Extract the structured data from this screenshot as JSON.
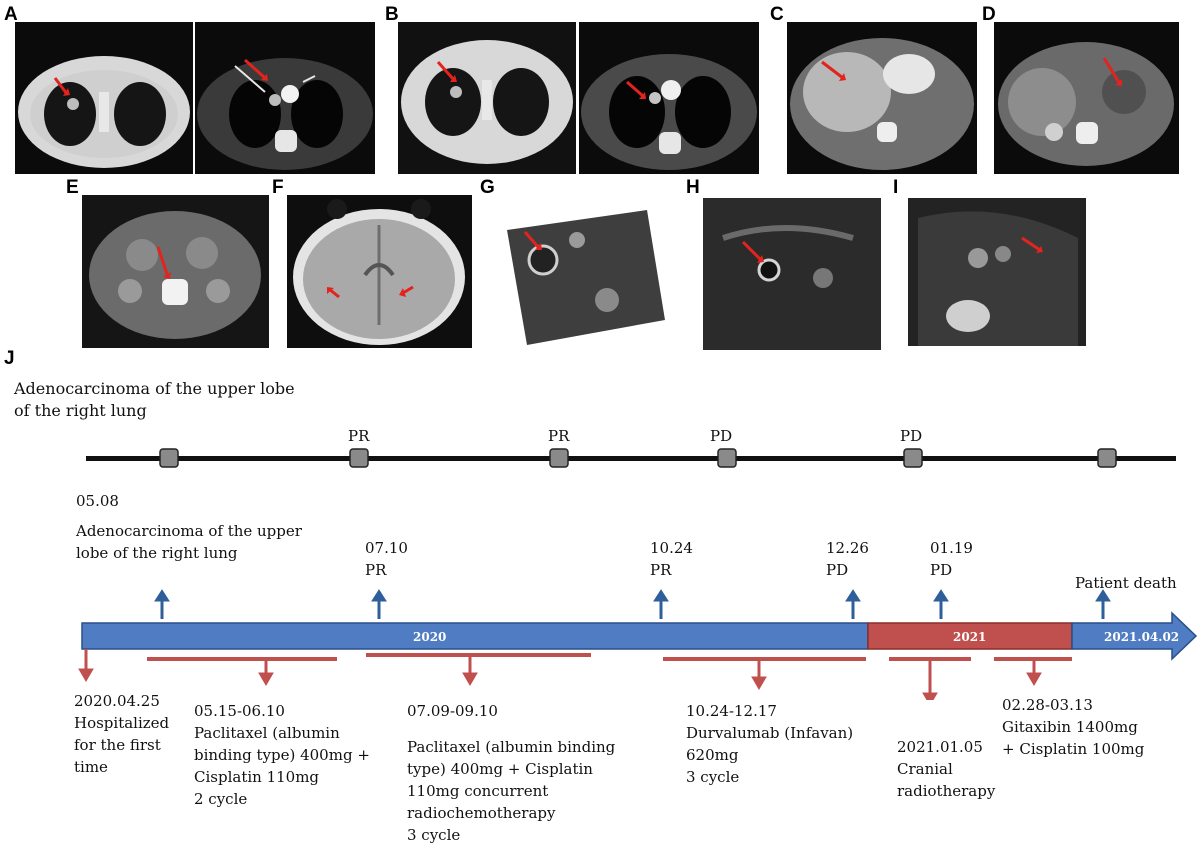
{
  "panel_labels": [
    "A",
    "B",
    "C",
    "D",
    "E",
    "F",
    "G",
    "H",
    "I",
    "J"
  ],
  "timeline_header": {
    "line1": "Adenocarcinoma of the upper lobe",
    "line2": "of the right lung"
  },
  "top_markers": [
    "PR",
    "PR",
    "PD",
    "PD"
  ],
  "events": {
    "e1": {
      "date": "05.08",
      "line1": "Adenocarcinoma of the upper",
      "line2": "lobe of the right lung"
    },
    "e2": {
      "date": "07.10",
      "status": "PR"
    },
    "e3": {
      "date": "10.24",
      "status": "PR"
    },
    "e4": {
      "date": "12.26",
      "status": "PD"
    },
    "e5": {
      "date": "01.19",
      "status": "PD"
    },
    "e6": {
      "label": "Patient death"
    }
  },
  "bar": {
    "y2020": "2020",
    "y2021": "2021",
    "end": "2021.04.02"
  },
  "treatments": {
    "t0": {
      "line1": "2020.04.25",
      "line2": "Hospitalized",
      "line3": "for the first",
      "line4": "time"
    },
    "t1": {
      "line1": "05.15-06.10",
      "line2": "Paclitaxel (albumin",
      "line3": "binding type) 400mg +",
      "line4": "Cisplatin 110mg",
      "line5": "2 cycle"
    },
    "t2": {
      "line1": "07.09-09.10",
      "line2": "Paclitaxel (albumin binding",
      "line3": "type) 400mg + Cisplatin",
      "line4": "110mg concurrent",
      "line5": "radiochemotherapy",
      "line6": "3 cycle"
    },
    "t3": {
      "line1": "10.24-12.17",
      "line2": "Durvalumab (Infavan)",
      "line3": "620mg",
      "line4": "3 cycle"
    },
    "t4": {
      "line1": "2021.01.05",
      "line2": "Cranial",
      "line3": "radiotherapy"
    },
    "t5": {
      "line1": "02.28-03.13",
      "line2": "Gitaxibin 1400mg",
      "line3": "+ Cisplatin 100mg"
    }
  },
  "colors": {
    "blue": "#4f7cc2",
    "red": "#c0504d",
    "arrow_blue": "#2f5f9a",
    "arrow_red": "#c0504d"
  }
}
